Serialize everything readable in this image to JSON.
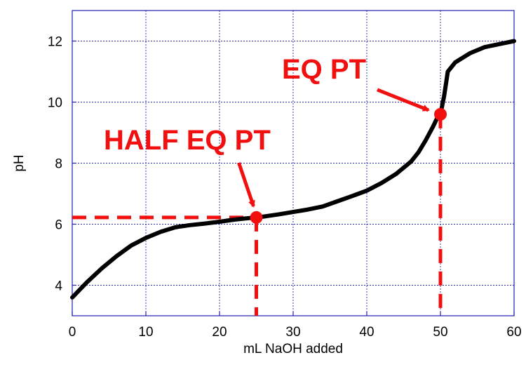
{
  "chart_data": {
    "type": "line",
    "title": "",
    "xlabel": "mL NaOH added",
    "ylabel": "pH",
    "xlim": [
      0,
      60
    ],
    "ylim": [
      3,
      13
    ],
    "x_ticks": [
      0,
      10,
      20,
      30,
      40,
      50,
      60
    ],
    "y_ticks": [
      4,
      6,
      8,
      10,
      12
    ],
    "x_tick_labels": [
      "0",
      "10",
      "20",
      "30",
      "40",
      "50",
      "60"
    ],
    "y_tick_labels": [
      "4",
      "6",
      "8",
      "10",
      "12"
    ],
    "grid": true,
    "legend": "none",
    "series": [
      {
        "color": "#000000",
        "x": [
          0,
          2,
          4,
          6,
          8,
          10,
          12,
          14,
          16,
          18,
          20,
          22,
          24,
          25,
          26,
          28,
          30,
          32,
          34,
          36,
          38,
          40,
          42,
          44,
          46,
          47,
          48,
          49,
          49.5,
          50,
          50.5,
          51,
          52,
          54,
          56,
          58,
          60
        ],
        "y": [
          3.6,
          4.1,
          4.55,
          4.95,
          5.3,
          5.55,
          5.75,
          5.9,
          5.97,
          6.02,
          6.08,
          6.15,
          6.2,
          6.22,
          6.25,
          6.32,
          6.4,
          6.48,
          6.58,
          6.75,
          6.92,
          7.1,
          7.35,
          7.65,
          8.05,
          8.35,
          8.75,
          9.2,
          9.45,
          9.6,
          10.2,
          11.0,
          11.3,
          11.6,
          11.8,
          11.9,
          12.0
        ]
      }
    ],
    "annotations": [
      {
        "label": "HALF EQ PT",
        "point": {
          "x": 25,
          "y": 6.22
        },
        "color": "#f20f0f"
      },
      {
        "label": "EQ PT",
        "point": {
          "x": 50,
          "y": 9.6
        },
        "color": "#f20f0f"
      }
    ]
  }
}
